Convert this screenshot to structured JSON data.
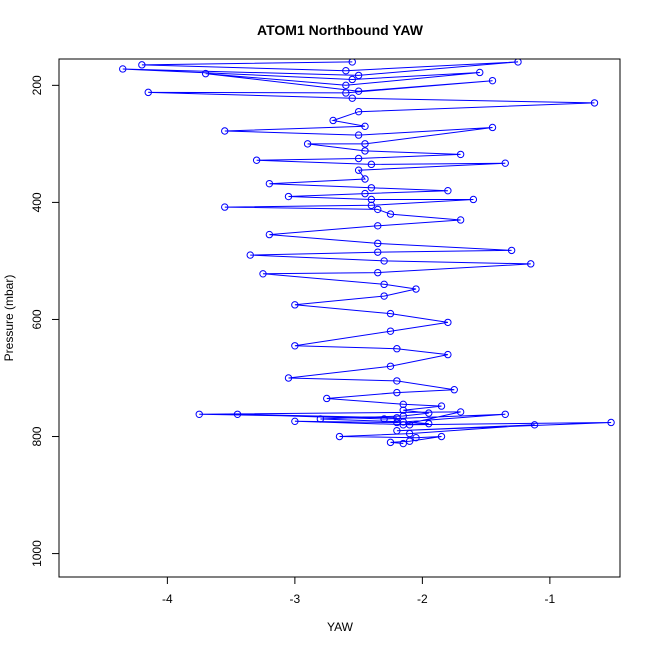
{
  "chart_data": {
    "type": "scatter",
    "title": "ATOM1 Northbound YAW",
    "xlabel": "YAW",
    "ylabel": "Pressure (mbar)",
    "xlim": [
      -4.85,
      -0.45
    ],
    "ylim": [
      1040,
      155
    ],
    "y_axis_inverted": true,
    "x_ticks": [
      -4,
      -3,
      -2,
      -1
    ],
    "x_tick_labels": [
      "-4",
      "-3",
      "-2",
      "-1"
    ],
    "y_ticks": [
      200,
      400,
      600,
      800,
      1000
    ],
    "y_tick_labels": [
      "200",
      "400",
      "600",
      "800",
      "1000"
    ],
    "grid": false,
    "legend": "none",
    "series_color": "#0000ff",
    "marker": "open-circle",
    "connected": true,
    "series": [
      {
        "note_points": "representative sample of the dense sounding trace",
        "x": [
          -2.55,
          -4.2,
          -2.6,
          -1.25,
          -2.5,
          -4.35,
          -2.55,
          -1.55,
          -2.6,
          -3.7,
          -2.5,
          -1.45,
          -2.6,
          -4.15,
          -2.55,
          -0.65,
          -2.5,
          -2.7,
          -2.45,
          -3.55,
          -2.5,
          -1.45,
          -2.45,
          -2.9,
          -2.45,
          -1.7,
          -2.5,
          -3.3,
          -2.4,
          -1.35,
          -2.5,
          -2.45,
          -3.2,
          -2.4,
          -1.8,
          -2.45,
          -3.05,
          -2.4,
          -1.6,
          -2.4,
          -3.55,
          -2.35,
          -2.25,
          -1.7,
          -2.35,
          -3.2,
          -2.35,
          -1.3,
          -2.35,
          -3.35,
          -2.3,
          -1.15,
          -2.35,
          -3.25,
          -2.3,
          -2.05,
          -2.3,
          -3.0,
          -2.25,
          -1.8,
          -2.25,
          -3.0,
          -2.2,
          -1.8,
          -2.25,
          -3.05,
          -2.2,
          -1.75,
          -2.2,
          -2.75,
          -2.15,
          -1.85,
          -2.15,
          -1.95,
          -2.15,
          -2.8,
          -2.15,
          -1.95,
          -2.15,
          -1.7,
          -3.75,
          -2.2,
          -3.45,
          -2.3,
          -1.35,
          -2.2,
          -3.0,
          -2.1,
          -0.52,
          -2.2,
          -1.12,
          -2.1,
          -2.65,
          -2.05,
          -1.85,
          -2.1,
          -2.25,
          -2.15
        ],
        "y": [
          160,
          165,
          175,
          160,
          183,
          172,
          190,
          178,
          200,
          180,
          210,
          192,
          213,
          212,
          222,
          230,
          245,
          260,
          270,
          278,
          285,
          272,
          300,
          300,
          312,
          318,
          325,
          328,
          335,
          333,
          345,
          360,
          368,
          375,
          380,
          385,
          390,
          395,
          395,
          405,
          408,
          412,
          420,
          430,
          440,
          455,
          470,
          482,
          485,
          490,
          500,
          505,
          520,
          522,
          540,
          548,
          560,
          575,
          590,
          605,
          620,
          645,
          650,
          660,
          680,
          700,
          705,
          720,
          725,
          735,
          745,
          748,
          755,
          760,
          765,
          770,
          775,
          778,
          780,
          758,
          762,
          768,
          762,
          770,
          762,
          776,
          774,
          780,
          776,
          790,
          780,
          795,
          800,
          802,
          800,
          808,
          810,
          812
        ]
      }
    ]
  }
}
